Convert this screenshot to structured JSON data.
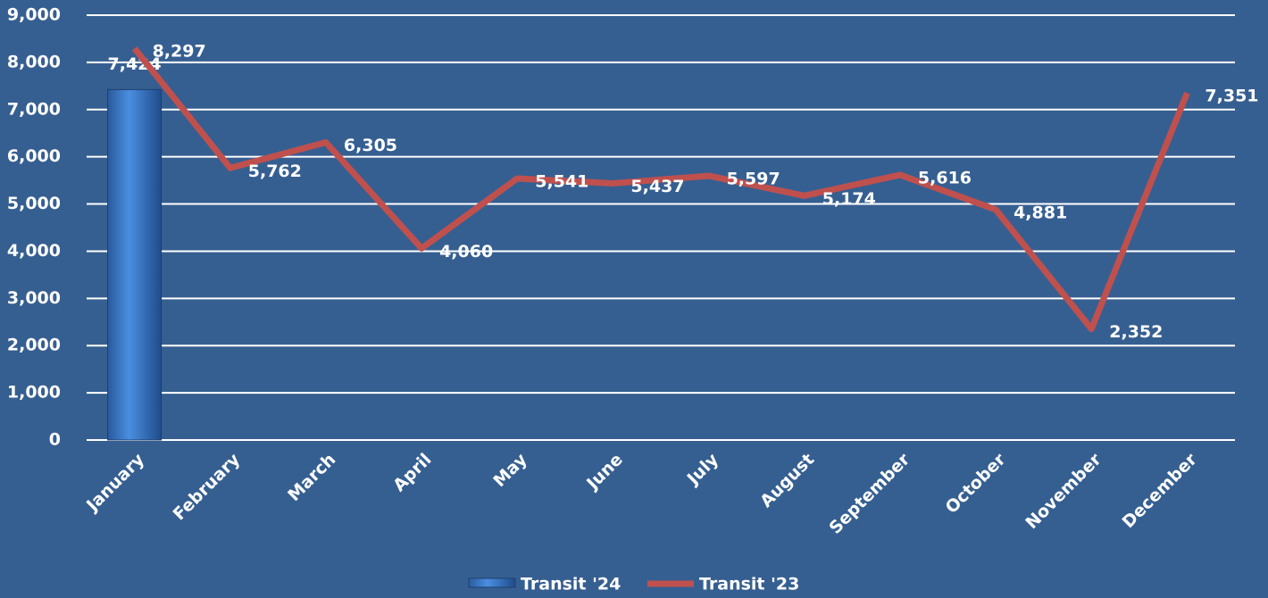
{
  "chart_data": {
    "type": "combo",
    "categories": [
      "January",
      "February",
      "March",
      "April",
      "May",
      "June",
      "July",
      "August",
      "September",
      "October",
      "November",
      "December"
    ],
    "series": [
      {
        "name": "Transit '24",
        "type": "bar",
        "color": "#3f7fd0",
        "values": [
          7424,
          null,
          null,
          null,
          null,
          null,
          null,
          null,
          null,
          null,
          null,
          null
        ],
        "value_labels": [
          "7,424",
          null,
          null,
          null,
          null,
          null,
          null,
          null,
          null,
          null,
          null,
          null
        ]
      },
      {
        "name": "Transit '23",
        "type": "line",
        "color": "#c0504d",
        "values": [
          8297,
          5762,
          6305,
          4060,
          5541,
          5437,
          5597,
          5174,
          5616,
          4881,
          2352,
          7351
        ],
        "value_labels": [
          "8,297",
          "5,762",
          "6,305",
          "4,060",
          "5,541",
          "5,437",
          "5,597",
          "5,174",
          "5,616",
          "4,881",
          "2,352",
          "7,351"
        ]
      }
    ],
    "ylim": [
      0,
      9000
    ],
    "yticks": [
      0,
      {
        "value": 1000,
        "label": "1,000"
      },
      {
        "value": 2000,
        "label": "2,000"
      },
      {
        "value": 3000,
        "label": "3,000"
      },
      {
        "value": 4000,
        "label": "4,000"
      },
      {
        "value": 5000,
        "label": "5,000"
      },
      {
        "value": 6000,
        "label": "6,000"
      },
      {
        "value": 7000,
        "label": "7,000"
      },
      {
        "value": 8000,
        "label": "8,000"
      },
      {
        "value": 9000,
        "label": "9,000"
      }
    ],
    "grid": true,
    "legend": "bottom"
  }
}
